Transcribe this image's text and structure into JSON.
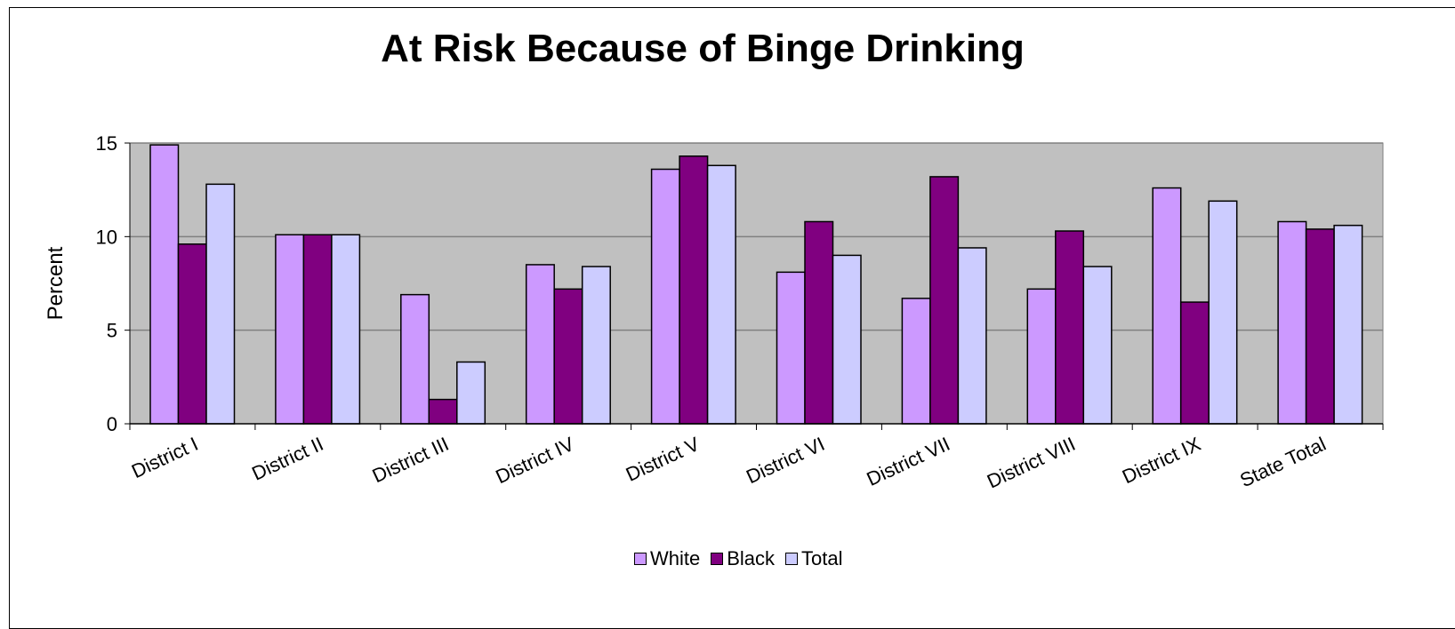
{
  "chart_data": {
    "type": "bar",
    "title": "At Risk Because of Binge Drinking",
    "xlabel": "",
    "ylabel": "Percent",
    "ylim": [
      0,
      15
    ],
    "yticks": [
      "0",
      "5",
      "10",
      "15"
    ],
    "grid": true,
    "legend_position": "bottom",
    "categories": [
      "District I",
      "District II",
      "District III",
      "District IV",
      "District V",
      "District VI",
      "District VII",
      "District VIII",
      "District IX",
      "State Total"
    ],
    "series": [
      {
        "name": "White",
        "color": "#CC99FF",
        "values": [
          14.9,
          10.1,
          6.9,
          8.5,
          13.6,
          8.1,
          6.7,
          7.2,
          12.6,
          10.8
        ]
      },
      {
        "name": "Black",
        "color": "#800080",
        "values": [
          9.6,
          10.1,
          1.3,
          7.2,
          14.3,
          10.8,
          13.2,
          10.3,
          6.5,
          10.4
        ]
      },
      {
        "name": "Total",
        "color": "#CCCCFF",
        "values": [
          12.8,
          10.1,
          3.3,
          8.4,
          13.8,
          9.0,
          9.4,
          8.4,
          11.9,
          10.6
        ]
      }
    ],
    "plot_background": "#C0C0C0"
  }
}
